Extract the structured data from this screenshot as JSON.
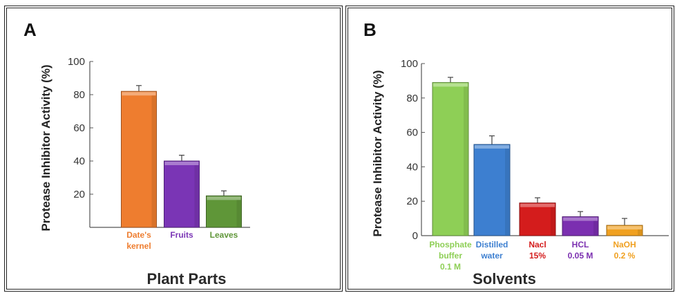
{
  "chart_data": [
    {
      "panel_label": "A",
      "type": "bar",
      "ylabel": "Protease Inhibitor Activity (%)",
      "xlabel": "Plant Parts",
      "ylim": [
        0,
        100
      ],
      "yticks": [
        20,
        40,
        60,
        80,
        100
      ],
      "categories": [
        {
          "lines": [
            "Date's",
            "kernel"
          ],
          "color": "#ee7d2f"
        },
        {
          "lines": [
            "Fruits"
          ],
          "color": "#7a35b5"
        },
        {
          "lines": [
            "Leaves"
          ],
          "color": "#5f9638"
        }
      ],
      "values": [
        82,
        40,
        19
      ],
      "errors": [
        3.5,
        3.5,
        3
      ],
      "grid": false,
      "legend": "none"
    },
    {
      "panel_label": "B",
      "type": "bar",
      "ylabel": "Protease Inhibitor Activity (%)",
      "xlabel": "Solvents",
      "ylim": [
        0,
        100
      ],
      "yticks": [
        0,
        20,
        40,
        60,
        80,
        100
      ],
      "categories": [
        {
          "lines": [
            "Phosphate",
            "buffer",
            "0.1 M"
          ],
          "color": "#8ecf56"
        },
        {
          "lines": [
            "Distilled",
            "water"
          ],
          "color": "#3d7fd0"
        },
        {
          "lines": [
            "Nacl",
            "15%"
          ],
          "color": "#d41c1c"
        },
        {
          "lines": [
            "HCL",
            "0.05 M"
          ],
          "color": "#7b2fb0"
        },
        {
          "lines": [
            "NaOH",
            "0.2 %"
          ],
          "color": "#f0a020"
        }
      ],
      "values": [
        89,
        53,
        19,
        11,
        6
      ],
      "errors": [
        3,
        5,
        3,
        3,
        4
      ],
      "grid": false,
      "legend": "none"
    }
  ]
}
